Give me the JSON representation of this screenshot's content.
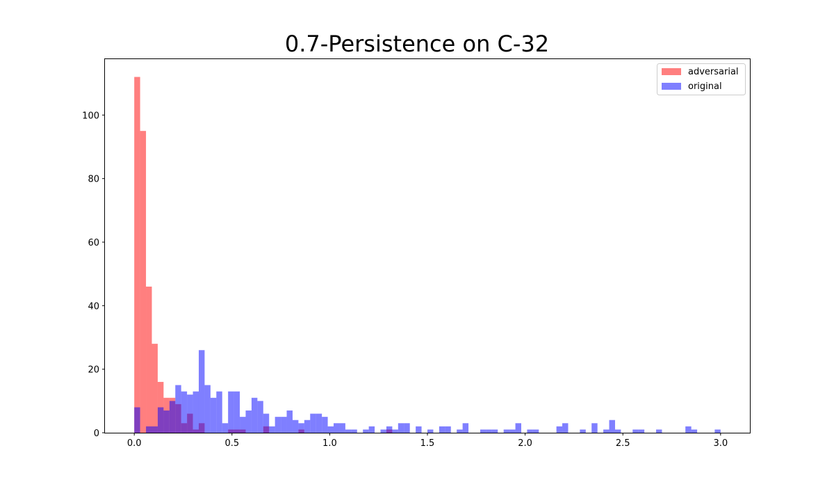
{
  "chart_data": {
    "type": "bar",
    "title": "0.7-Persistence on C-32",
    "xlabel": "",
    "ylabel": "",
    "xlim": [
      -0.15,
      3.15
    ],
    "ylim": [
      0,
      117.6
    ],
    "xticks": [
      0.0,
      0.5,
      1.0,
      1.5,
      2.0,
      2.5,
      3.0
    ],
    "xtick_labels": [
      "0.0",
      "0.5",
      "1.0",
      "1.5",
      "2.0",
      "2.5",
      "3.0"
    ],
    "yticks": [
      0,
      20,
      40,
      60,
      80,
      100
    ],
    "ytick_labels": [
      "0",
      "20",
      "40",
      "60",
      "80",
      "100"
    ],
    "legend_position": "top-right",
    "grid": false,
    "overlap_color": "#800080",
    "series": [
      {
        "name": "adversarial",
        "color": "#ff0000",
        "opacity": 0.5,
        "bin_width": 0.03,
        "bins": [
          [
            0.0,
            112
          ],
          [
            0.03,
            95
          ],
          [
            0.06,
            46
          ],
          [
            0.09,
            28
          ],
          [
            0.12,
            16
          ],
          [
            0.15,
            11
          ],
          [
            0.18,
            11
          ],
          [
            0.21,
            9
          ],
          [
            0.24,
            3
          ],
          [
            0.27,
            6
          ],
          [
            0.3,
            1
          ],
          [
            0.33,
            3
          ],
          [
            0.48,
            1
          ],
          [
            0.51,
            1
          ],
          [
            0.54,
            1
          ],
          [
            0.66,
            2
          ],
          [
            0.84,
            1
          ],
          [
            1.29,
            1
          ]
        ]
      },
      {
        "name": "original",
        "color": "#0000ff",
        "opacity": 0.5,
        "bin_width": 0.03,
        "bins": [
          [
            0.0,
            8
          ],
          [
            0.06,
            2
          ],
          [
            0.09,
            2
          ],
          [
            0.12,
            8
          ],
          [
            0.15,
            7
          ],
          [
            0.18,
            10
          ],
          [
            0.21,
            15
          ],
          [
            0.24,
            13
          ],
          [
            0.27,
            12
          ],
          [
            0.3,
            13
          ],
          [
            0.33,
            26
          ],
          [
            0.36,
            15
          ],
          [
            0.39,
            11
          ],
          [
            0.42,
            13
          ],
          [
            0.45,
            3
          ],
          [
            0.48,
            13
          ],
          [
            0.51,
            13
          ],
          [
            0.54,
            5
          ],
          [
            0.57,
            7
          ],
          [
            0.6,
            11
          ],
          [
            0.63,
            10
          ],
          [
            0.66,
            6
          ],
          [
            0.69,
            2
          ],
          [
            0.72,
            5
          ],
          [
            0.75,
            5
          ],
          [
            0.78,
            7
          ],
          [
            0.81,
            4
          ],
          [
            0.84,
            3
          ],
          [
            0.87,
            4
          ],
          [
            0.9,
            6
          ],
          [
            0.93,
            6
          ],
          [
            0.96,
            5
          ],
          [
            0.99,
            2
          ],
          [
            1.02,
            3
          ],
          [
            1.05,
            3
          ],
          [
            1.08,
            1
          ],
          [
            1.11,
            1
          ],
          [
            1.17,
            1
          ],
          [
            1.2,
            2
          ],
          [
            1.26,
            1
          ],
          [
            1.29,
            2
          ],
          [
            1.32,
            1
          ],
          [
            1.35,
            3
          ],
          [
            1.38,
            3
          ],
          [
            1.44,
            2
          ],
          [
            1.5,
            1
          ],
          [
            1.56,
            2
          ],
          [
            1.59,
            2
          ],
          [
            1.65,
            1
          ],
          [
            1.68,
            3
          ],
          [
            1.77,
            1
          ],
          [
            1.8,
            1
          ],
          [
            1.83,
            1
          ],
          [
            1.89,
            1
          ],
          [
            1.92,
            1
          ],
          [
            1.95,
            3
          ],
          [
            2.01,
            1
          ],
          [
            2.04,
            1
          ],
          [
            2.16,
            2
          ],
          [
            2.19,
            3
          ],
          [
            2.28,
            1
          ],
          [
            2.34,
            3
          ],
          [
            2.4,
            1
          ],
          [
            2.43,
            4
          ],
          [
            2.46,
            1
          ],
          [
            2.55,
            1
          ],
          [
            2.58,
            1
          ],
          [
            2.67,
            1
          ],
          [
            2.82,
            2
          ],
          [
            2.85,
            1
          ],
          [
            2.97,
            1
          ]
        ]
      }
    ]
  }
}
